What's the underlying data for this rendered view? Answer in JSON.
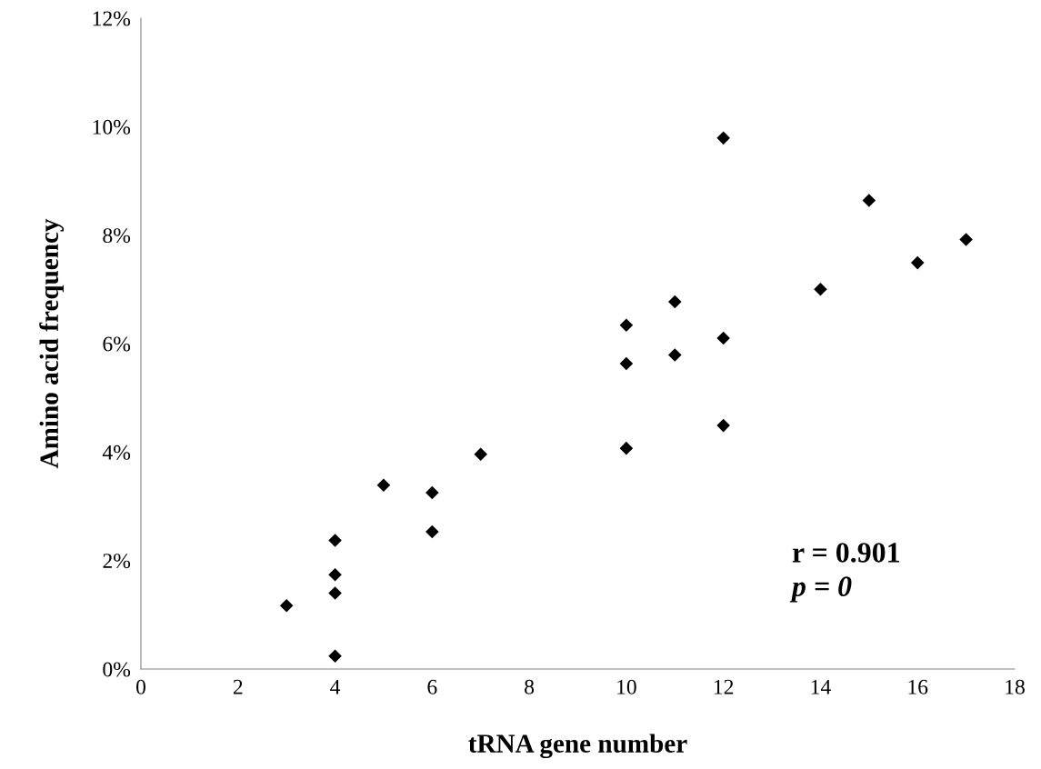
{
  "chart_data": {
    "type": "scatter",
    "xlabel": "tRNA gene number",
    "ylabel": "Amino acid frequency",
    "x": [
      3,
      4,
      4,
      4,
      4,
      5,
      6,
      6,
      7,
      10,
      10,
      10,
      11,
      11,
      12,
      12,
      12,
      14,
      15,
      16,
      17
    ],
    "series": [
      {
        "color": "#000000",
        "values": [
          1.17,
          2.37,
          1.74,
          1.4,
          0.24,
          3.39,
          3.25,
          2.53,
          3.96,
          6.34,
          5.63,
          4.07,
          6.77,
          5.79,
          9.79,
          6.1,
          4.49,
          7.0,
          8.64,
          7.49,
          7.92
        ]
      }
    ],
    "xlim": [
      0,
      18
    ],
    "xticks": [
      0,
      2,
      4,
      6,
      8,
      10,
      12,
      14,
      16,
      18
    ],
    "ylim": [
      0,
      12
    ],
    "yticks": [
      {
        "value": 0,
        "label": "0%"
      },
      {
        "value": 2,
        "label": "2%"
      },
      {
        "value": 4,
        "label": "4%"
      },
      {
        "value": 6,
        "label": "6%"
      },
      {
        "value": 8,
        "label": "8%"
      },
      {
        "value": 10,
        "label": "10%"
      },
      {
        "value": 12,
        "label": "12%"
      }
    ],
    "annotations": [
      "r = 0.901",
      "p = 0"
    ],
    "marker": "diamond",
    "grid": false,
    "legend": false
  }
}
